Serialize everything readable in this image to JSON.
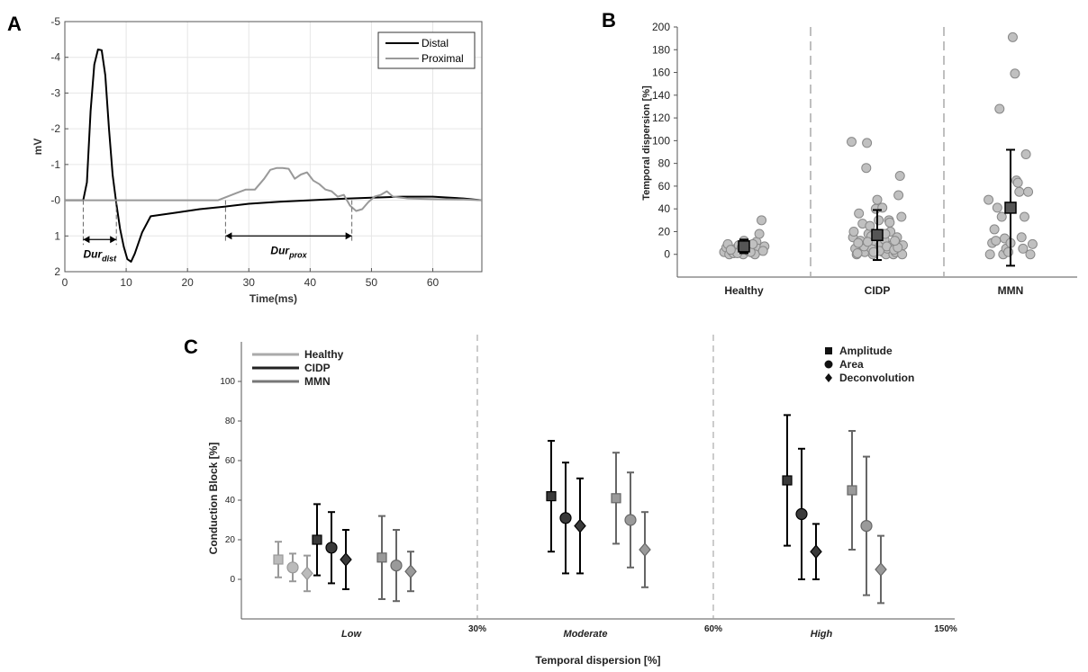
{
  "panels": {
    "a": "A",
    "b": "B",
    "c": "C"
  },
  "chart_data": [
    {
      "panel": "A",
      "type": "line",
      "xlabel": "Time(ms)",
      "ylabel": "mV",
      "xlim": [
        0,
        68
      ],
      "ylim": [
        -5,
        2
      ],
      "y_reversed": true,
      "xticks": [
        0,
        10,
        20,
        30,
        40,
        50,
        60
      ],
      "xtick_labels": [
        "0",
        "10",
        "20",
        "30",
        "40",
        "50",
        "60"
      ],
      "yticks": [
        -5,
        -4,
        -3,
        -2,
        -1,
        0,
        1,
        2
      ],
      "ytick_labels": [
        "-5",
        "-4",
        "-3",
        "-2",
        "-1",
        "-0",
        "1",
        "2"
      ],
      "grid": true,
      "legend_position": "top-right",
      "series": [
        {
          "name": "Distal",
          "color": "#000000",
          "x": [
            0,
            3,
            3.6,
            4.2,
            4.8,
            5.4,
            6,
            6.6,
            7.2,
            7.8,
            8.4,
            9,
            9.6,
            10.2,
            10.8,
            11.4,
            12.6,
            14,
            18,
            22,
            26,
            30,
            35,
            40,
            45,
            50,
            55,
            60,
            65,
            68
          ],
          "y": [
            0,
            0,
            -0.5,
            -2.5,
            -3.8,
            -4.22,
            -4.2,
            -3.5,
            -2.0,
            -0.7,
            0.1,
            0.8,
            1.3,
            1.65,
            1.72,
            1.5,
            0.9,
            0.45,
            0.35,
            0.25,
            0.18,
            0.1,
            0.04,
            0.0,
            -0.04,
            -0.07,
            -0.1,
            -0.1,
            -0.05,
            0
          ]
        },
        {
          "name": "Proximal",
          "color": "#999999",
          "x": [
            0,
            25,
            26.5,
            28,
            29.5,
            31,
            32.5,
            33.5,
            34.5,
            35.5,
            36.5,
            37.5,
            38.5,
            39.5,
            40.5,
            41.5,
            42.5,
            43.5,
            44.5,
            45.5,
            46.5,
            47.5,
            48.5,
            49.5,
            50.5,
            51.5,
            52.5,
            53.5,
            56,
            60,
            65,
            68
          ],
          "y": [
            0,
            0,
            -0.1,
            -0.2,
            -0.3,
            -0.3,
            -0.6,
            -0.85,
            -0.9,
            -0.9,
            -0.88,
            -0.6,
            -0.72,
            -0.78,
            -0.55,
            -0.45,
            -0.3,
            -0.25,
            -0.1,
            -0.15,
            0.15,
            0.3,
            0.25,
            0.05,
            -0.1,
            -0.15,
            -0.25,
            -0.1,
            -0.05,
            -0.03,
            -0.02,
            0
          ]
        }
      ],
      "annotations": [
        {
          "label": "Dur",
          "subscript": "dist",
          "x_start": 3,
          "x_end": 8.4,
          "y": 1.1
        },
        {
          "label": "Dur",
          "subscript": "prox",
          "x_start": 26.2,
          "x_end": 46.8,
          "y": 1.0
        }
      ]
    },
    {
      "panel": "B",
      "type": "scatter",
      "ylabel": "Temporal dispersion [%]",
      "xlabel": "",
      "ylim": [
        -20,
        200
      ],
      "yticks": [
        0,
        20,
        40,
        60,
        80,
        100,
        120,
        140,
        160,
        180,
        200
      ],
      "categories": [
        "Healthy",
        "CIDP",
        "MMN"
      ],
      "point_color": "#c0c0c0",
      "mean_color": "#555555",
      "groups": [
        {
          "category": "Healthy",
          "mean": 7,
          "error": 6,
          "points": [
            [
              -0.27,
              2
            ],
            [
              -0.24,
              6
            ],
            [
              -0.2,
              0
            ],
            [
              -0.17,
              3
            ],
            [
              -0.14,
              1
            ],
            [
              -0.11,
              5
            ],
            [
              -0.07,
              8
            ],
            [
              -0.04,
              4
            ],
            [
              -0.01,
              0
            ],
            [
              0.03,
              9
            ],
            [
              0.06,
              3
            ],
            [
              0.1,
              7
            ],
            [
              0.13,
              1
            ],
            [
              0.17,
              11
            ],
            [
              0.2,
              5
            ],
            [
              0.24,
              30
            ],
            [
              0.28,
              7
            ],
            [
              -0.22,
              9
            ],
            [
              0.0,
              12
            ],
            [
              0.15,
              0
            ],
            [
              -0.09,
              1
            ],
            [
              0.09,
              2
            ],
            [
              0.21,
              18
            ],
            [
              0.26,
              3
            ],
            [
              -0.18,
              4
            ],
            [
              0.12,
              9
            ],
            [
              -0.03,
              6
            ]
          ]
        },
        {
          "category": "CIDP",
          "mean": 17,
          "error": 22,
          "points": [
            [
              -0.35,
              99
            ],
            [
              -0.33,
              15
            ],
            [
              -0.3,
              5
            ],
            [
              -0.28,
              0
            ],
            [
              -0.25,
              36
            ],
            [
              -0.22,
              9
            ],
            [
              -0.2,
              27
            ],
            [
              -0.17,
              2
            ],
            [
              -0.15,
              76
            ],
            [
              -0.14,
              98
            ],
            [
              -0.12,
              18
            ],
            [
              -0.1,
              25
            ],
            [
              -0.08,
              5
            ],
            [
              -0.06,
              0
            ],
            [
              -0.04,
              12
            ],
            [
              -0.02,
              40
            ],
            [
              0.0,
              48
            ],
            [
              0.02,
              30
            ],
            [
              0.04,
              8
            ],
            [
              0.06,
              17
            ],
            [
              0.08,
              2
            ],
            [
              0.1,
              13
            ],
            [
              0.12,
              0
            ],
            [
              0.14,
              5
            ],
            [
              0.16,
              30
            ],
            [
              0.18,
              20
            ],
            [
              0.2,
              8
            ],
            [
              0.22,
              0
            ],
            [
              0.25,
              2
            ],
            [
              0.27,
              15
            ],
            [
              0.29,
              52
            ],
            [
              0.31,
              69
            ],
            [
              0.33,
              33
            ],
            [
              0.35,
              8
            ],
            [
              -0.27,
              1
            ],
            [
              -0.18,
              7
            ],
            [
              -0.08,
              16
            ],
            [
              0.03,
              3
            ],
            [
              0.13,
              7
            ],
            [
              0.23,
              4
            ],
            [
              0.34,
              0
            ],
            [
              -0.32,
              20
            ],
            [
              -0.23,
              12
            ],
            [
              -0.13,
              11
            ],
            [
              0.07,
              41
            ],
            [
              0.17,
              28
            ],
            [
              0.28,
              6
            ],
            [
              -0.26,
              10
            ],
            [
              -0.05,
              2
            ],
            [
              0.11,
              18
            ],
            [
              0.24,
              12
            ]
          ]
        },
        {
          "category": "MMN",
          "mean": 41,
          "error": 51,
          "points": [
            [
              -0.3,
              48
            ],
            [
              -0.28,
              0
            ],
            [
              -0.25,
              10
            ],
            [
              -0.22,
              22
            ],
            [
              -0.2,
              12
            ],
            [
              -0.18,
              41
            ],
            [
              -0.15,
              128
            ],
            [
              -0.12,
              33
            ],
            [
              -0.1,
              0
            ],
            [
              -0.08,
              14
            ],
            [
              -0.06,
              5
            ],
            [
              -0.03,
              2
            ],
            [
              0.0,
              10
            ],
            [
              0.03,
              191
            ],
            [
              0.06,
              159
            ],
            [
              0.08,
              65
            ],
            [
              0.1,
              63
            ],
            [
              0.12,
              55
            ],
            [
              0.15,
              15
            ],
            [
              0.17,
              5
            ],
            [
              0.19,
              33
            ],
            [
              0.21,
              88
            ],
            [
              0.24,
              55
            ],
            [
              0.27,
              0
            ],
            [
              0.3,
              9
            ]
          ]
        }
      ]
    },
    {
      "panel": "C",
      "type": "scatter",
      "xlabel": "Temporal dispersion [%]",
      "ylabel": "Conduction Block [%]",
      "ylim": [
        -20,
        120
      ],
      "yticks": [
        0,
        20,
        40,
        60,
        80,
        100
      ],
      "categories": [
        "Low",
        "Moderate",
        "High"
      ],
      "boundary_labels": [
        "30%",
        "60%",
        "150%"
      ],
      "group_legend": [
        {
          "name": "Healthy",
          "color": "#aaaaaa"
        },
        {
          "name": "CIDP",
          "color": "#222222"
        },
        {
          "name": "MMN",
          "color": "#777777"
        }
      ],
      "marker_legend": [
        {
          "name": "Amplitude",
          "marker": "square"
        },
        {
          "name": "Area",
          "marker": "circle"
        },
        {
          "name": "Deconvolution",
          "marker": "diamond"
        }
      ],
      "series": [
        {
          "category": "Low",
          "group": "Healthy",
          "method": "Amplitude",
          "value": 10,
          "error": 9
        },
        {
          "category": "Low",
          "group": "Healthy",
          "method": "Area",
          "value": 6,
          "error": 7
        },
        {
          "category": "Low",
          "group": "Healthy",
          "method": "Deconvolution",
          "value": 3,
          "error": 9
        },
        {
          "category": "Low",
          "group": "CIDP",
          "method": "Amplitude",
          "value": 20,
          "error": 18
        },
        {
          "category": "Low",
          "group": "CIDP",
          "method": "Area",
          "value": 16,
          "error": 18
        },
        {
          "category": "Low",
          "group": "CIDP",
          "method": "Deconvolution",
          "value": 10,
          "error": 15
        },
        {
          "category": "Low",
          "group": "MMN",
          "method": "Amplitude",
          "value": 11,
          "error": 21
        },
        {
          "category": "Low",
          "group": "MMN",
          "method": "Area",
          "value": 7,
          "error": 18
        },
        {
          "category": "Low",
          "group": "MMN",
          "method": "Deconvolution",
          "value": 4,
          "error": 10
        },
        {
          "category": "Moderate",
          "group": "CIDP",
          "method": "Amplitude",
          "value": 42,
          "error": 28
        },
        {
          "category": "Moderate",
          "group": "CIDP",
          "method": "Area",
          "value": 31,
          "error": 28
        },
        {
          "category": "Moderate",
          "group": "CIDP",
          "method": "Deconvolution",
          "value": 27,
          "error": 24
        },
        {
          "category": "Moderate",
          "group": "MMN",
          "method": "Amplitude",
          "value": 41,
          "error": 23
        },
        {
          "category": "Moderate",
          "group": "MMN",
          "method": "Area",
          "value": 30,
          "error": 24
        },
        {
          "category": "Moderate",
          "group": "MMN",
          "method": "Deconvolution",
          "value": 15,
          "error": 19
        },
        {
          "category": "High",
          "group": "CIDP",
          "method": "Amplitude",
          "value": 50,
          "error": 33
        },
        {
          "category": "High",
          "group": "CIDP",
          "method": "Area",
          "value": 33,
          "error": 33
        },
        {
          "category": "High",
          "group": "CIDP",
          "method": "Deconvolution",
          "value": 14,
          "error": 14
        },
        {
          "category": "High",
          "group": "MMN",
          "method": "Amplitude",
          "value": 45,
          "error": 30
        },
        {
          "category": "High",
          "group": "MMN",
          "method": "Area",
          "value": 27,
          "error": 35
        },
        {
          "category": "High",
          "group": "MMN",
          "method": "Deconvolution",
          "value": 5,
          "error": 17
        }
      ]
    }
  ]
}
